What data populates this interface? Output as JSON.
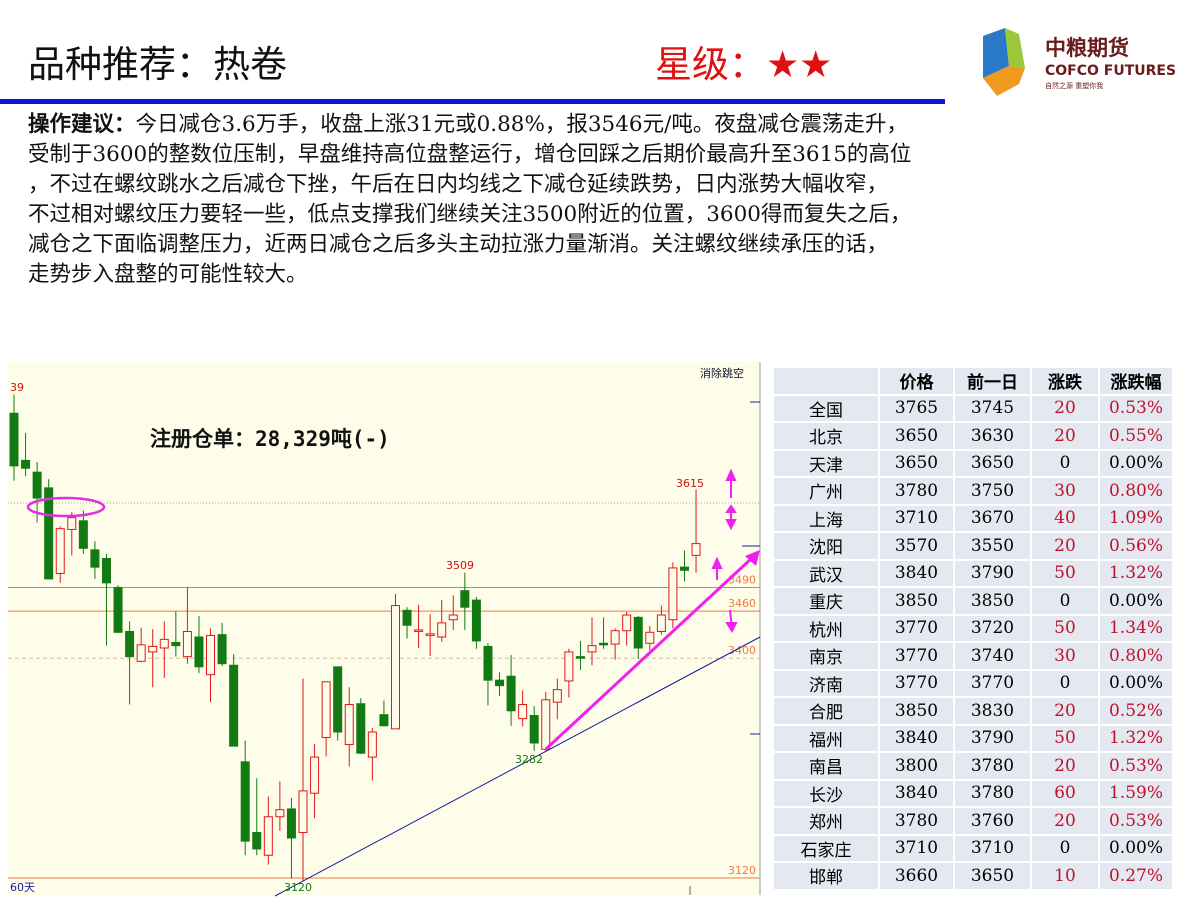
{
  "header": {
    "title": "品种推荐：热卷",
    "rating_label": "星级：",
    "rating_stars": "★★",
    "rating_value": 2,
    "logo": {
      "cn": "中粮期货",
      "en": "COFCO FUTURES",
      "tagline": "自然之源 重塑你我"
    }
  },
  "advice": {
    "label": "操作建议：",
    "lines": [
      "今日减仓3.6万手，收盘上涨31元或0.88%，报3546元/吨。夜盘减仓震荡走升，",
      "受制于3600的整数位压制，早盘维持高位盘整运行，增仓回踩之后期价最高升至3615的高位",
      "，不过在螺纹跳水之后减仓下挫，午后在日内均线之下减仓延续跌势，日内涨势大幅收窄，",
      "不过相对螺纹压力要轻一些，低点支撑我们继续关注3500附近的位置，3600得而复失之后，",
      "减仓之下面临调整压力，近两日减仓之后多头主动拉涨力量渐消。关注螺纹继续承压的话，",
      "走势步入盘整的可能性较大。"
    ]
  },
  "chart": {
    "annotation": "注册仓单：28,329吨(-)",
    "gap_button": "消除跳空",
    "period_label": "60天",
    "top_label": "39",
    "high_label": "3615",
    "mid_high_label": "3509",
    "low_label": "3282",
    "bottom_label": "3120",
    "levels": [
      {
        "label": "3490",
        "value": 3490
      },
      {
        "label": "3460",
        "value": 3460
      },
      {
        "label": "3400",
        "value": 3400
      },
      {
        "label": "3120",
        "value": 3120
      }
    ],
    "colors": {
      "up": "#e01818",
      "down": "#127a12",
      "level": "#f07a40",
      "trend": "#1a1aa0",
      "highlight": "#f020f0"
    },
    "candles": [
      [
        3712,
        3736,
        3626,
        3645
      ],
      [
        3652,
        3687,
        3632,
        3642
      ],
      [
        3637,
        3650,
        3573,
        3604
      ],
      [
        3617,
        3628,
        3501,
        3501
      ],
      [
        3508,
        3568,
        3496,
        3565
      ],
      [
        3564,
        3586,
        3531,
        3579
      ],
      [
        3575,
        3588,
        3533,
        3540
      ],
      [
        3538,
        3549,
        3501,
        3516
      ],
      [
        3527,
        3533,
        3416,
        3496
      ],
      [
        3490,
        3493,
        3432,
        3433
      ],
      [
        3434,
        3447,
        3341,
        3402
      ],
      [
        3396,
        3439,
        3395,
        3417
      ],
      [
        3408,
        3437,
        3363,
        3415
      ],
      [
        3413,
        3447,
        3375,
        3424
      ],
      [
        3420,
        3460,
        3402,
        3416
      ],
      [
        3402,
        3491,
        3393,
        3434
      ],
      [
        3427,
        3454,
        3381,
        3389
      ],
      [
        3379,
        3438,
        3344,
        3429
      ],
      [
        3430,
        3445,
        3390,
        3393
      ],
      [
        3391,
        3405,
        3288,
        3288
      ],
      [
        3268,
        3295,
        3149,
        3167
      ],
      [
        3178,
        3247,
        3149,
        3157
      ],
      [
        3149,
        3224,
        3137,
        3198
      ],
      [
        3198,
        3243,
        3180,
        3207
      ],
      [
        3208,
        3222,
        3119,
        3171
      ],
      [
        3178,
        3374,
        3117,
        3231
      ],
      [
        3228,
        3291,
        3196,
        3274
      ],
      [
        3299,
        3370,
        3275,
        3370
      ],
      [
        3389,
        3389,
        3295,
        3306
      ],
      [
        3290,
        3363,
        3262,
        3341
      ],
      [
        3342,
        3349,
        3278,
        3279
      ],
      [
        3274,
        3311,
        3244,
        3306
      ],
      [
        3328,
        3346,
        3313,
        3314
      ],
      [
        3310,
        3482,
        3310,
        3467
      ],
      [
        3461,
        3465,
        3425,
        3442
      ],
      [
        3435,
        3468,
        3413,
        3436
      ],
      [
        3430,
        3456,
        3403,
        3431
      ],
      [
        3427,
        3474,
        3421,
        3445
      ],
      [
        3449,
        3480,
        3436,
        3455
      ],
      [
        3486,
        3509,
        3436,
        3465
      ],
      [
        3474,
        3478,
        3412,
        3422
      ],
      [
        3415,
        3419,
        3340,
        3372
      ],
      [
        3372,
        3382,
        3352,
        3365
      ],
      [
        3377,
        3404,
        3314,
        3333
      ],
      [
        3323,
        3359,
        3313,
        3341
      ],
      [
        3327,
        3339,
        3282,
        3292
      ],
      [
        3284,
        3357,
        3282,
        3347
      ],
      [
        3344,
        3374,
        3322,
        3360
      ],
      [
        3371,
        3412,
        3350,
        3408
      ],
      [
        3402,
        3422,
        3385,
        3400
      ],
      [
        3408,
        3452,
        3391,
        3416
      ],
      [
        3419,
        3452,
        3412,
        3417
      ],
      [
        3418,
        3438,
        3398,
        3435
      ],
      [
        3435,
        3459,
        3416,
        3455
      ],
      [
        3452,
        3454,
        3399,
        3413
      ],
      [
        3419,
        3441,
        3410,
        3433
      ],
      [
        3434,
        3467,
        3430,
        3455
      ],
      [
        3449,
        3522,
        3438,
        3515
      ],
      [
        3516,
        3537,
        3498,
        3512
      ],
      [
        3531,
        3615,
        3509,
        3546
      ]
    ]
  },
  "table": {
    "headers": [
      "",
      "价格",
      "前一日",
      "涨跌",
      "涨跌幅"
    ],
    "rows": [
      [
        "全国",
        "3765",
        "3745",
        "20",
        "0.53%"
      ],
      [
        "北京",
        "3650",
        "3630",
        "20",
        "0.55%"
      ],
      [
        "天津",
        "3650",
        "3650",
        "0",
        "0.00%"
      ],
      [
        "广州",
        "3780",
        "3750",
        "30",
        "0.80%"
      ],
      [
        "上海",
        "3710",
        "3670",
        "40",
        "1.09%"
      ],
      [
        "沈阳",
        "3570",
        "3550",
        "20",
        "0.56%"
      ],
      [
        "武汉",
        "3840",
        "3790",
        "50",
        "1.32%"
      ],
      [
        "重庆",
        "3850",
        "3850",
        "0",
        "0.00%"
      ],
      [
        "杭州",
        "3770",
        "3720",
        "50",
        "1.34%"
      ],
      [
        "南京",
        "3770",
        "3740",
        "30",
        "0.80%"
      ],
      [
        "济南",
        "3770",
        "3770",
        "0",
        "0.00%"
      ],
      [
        "合肥",
        "3850",
        "3830",
        "20",
        "0.52%"
      ],
      [
        "福州",
        "3840",
        "3790",
        "50",
        "1.32%"
      ],
      [
        "南昌",
        "3800",
        "3780",
        "20",
        "0.53%"
      ],
      [
        "长沙",
        "3840",
        "3780",
        "60",
        "1.59%"
      ],
      [
        "郑州",
        "3780",
        "3760",
        "20",
        "0.53%"
      ],
      [
        "石家庄",
        "3710",
        "3710",
        "0",
        "0.00%"
      ],
      [
        "邯郸",
        "3660",
        "3650",
        "10",
        "0.27%"
      ]
    ]
  }
}
